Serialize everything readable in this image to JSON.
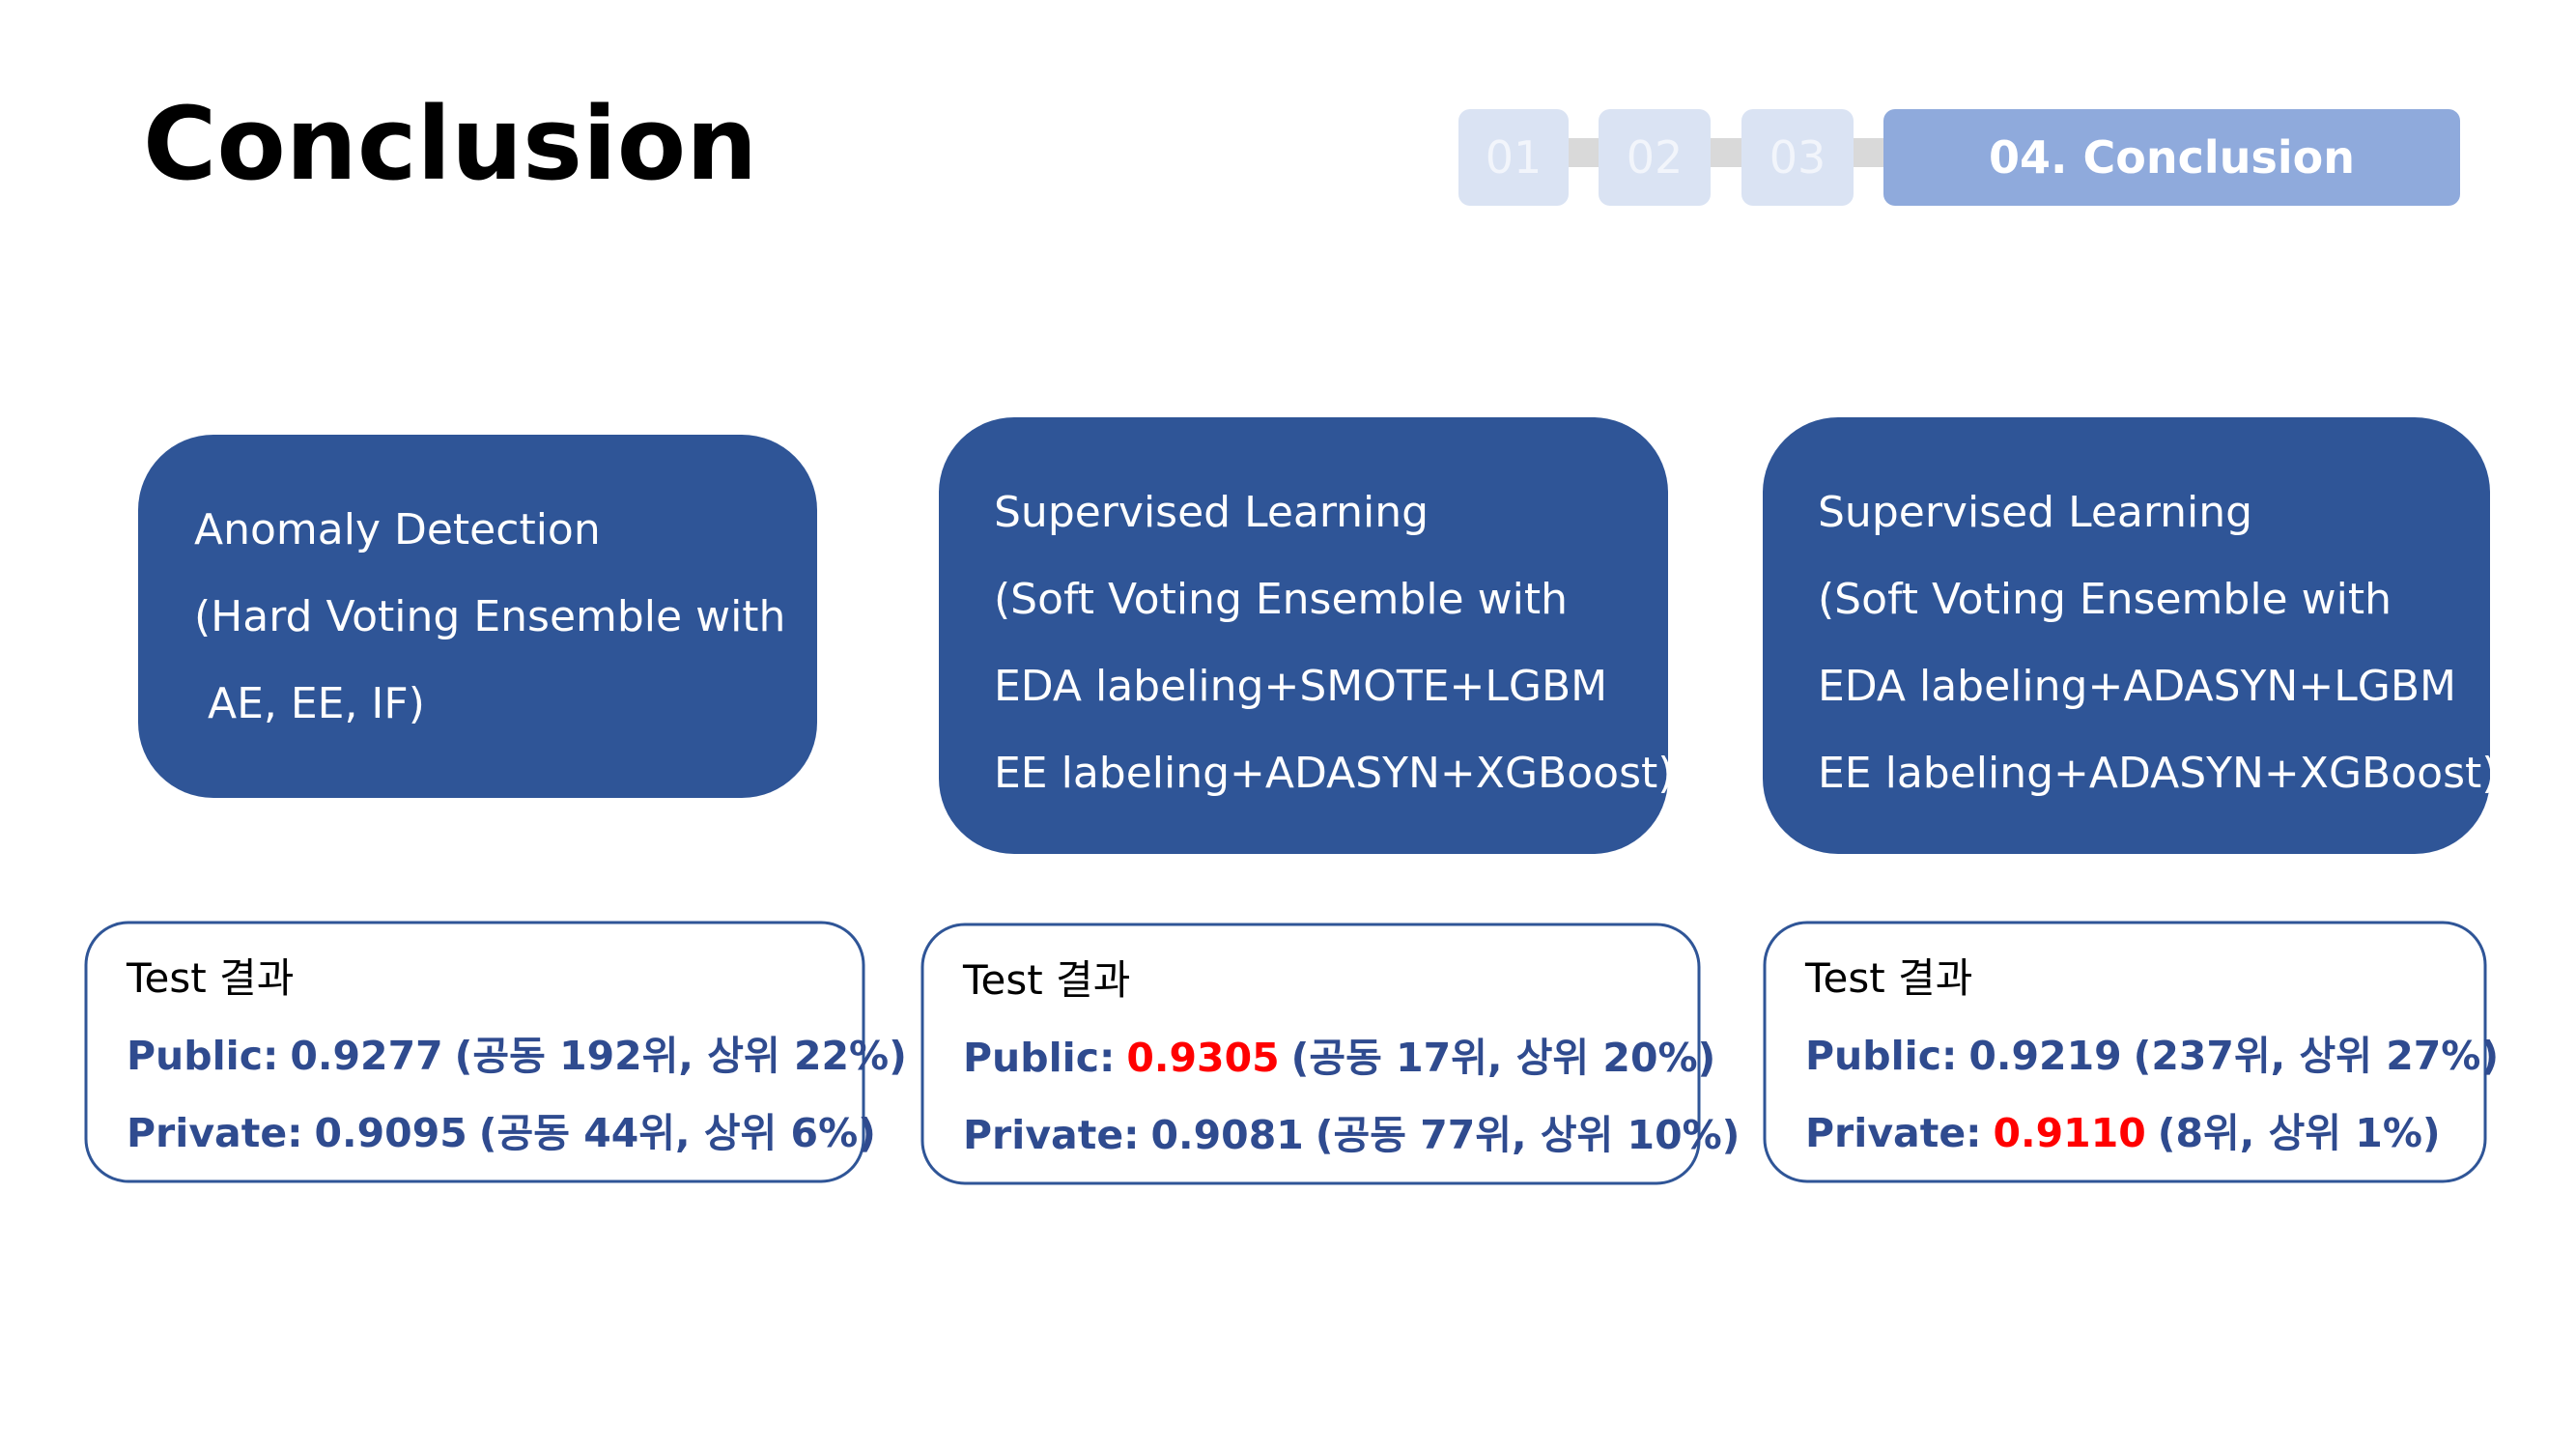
{
  "header": {
    "title": "Conclusion"
  },
  "nav": {
    "steps": [
      "01",
      "02",
      "03",
      "04. Conclusion"
    ],
    "active": 3
  },
  "cards": [
    {
      "lines": [
        "Anomaly Detection",
        "(Hard Voting Ensemble with",
        " AE, EE, IF)"
      ]
    },
    {
      "lines": [
        "Supervised Learning",
        "(Soft Voting Ensemble with",
        "EDA labeling+SMOTE+LGBM",
        "EE labeling+ADASYN+XGBoost)"
      ]
    },
    {
      "lines": [
        "Supervised Learning",
        "(Soft Voting Ensemble with",
        "EDA labeling+ADASYN+LGBM",
        "EE labeling+ADASYN+XGBoost)"
      ]
    }
  ],
  "results": [
    {
      "heading": "Test 결과",
      "rows": [
        {
          "label": "Public:",
          "value": "0.9277",
          "detail": "(공동 192위, 상위 22%)",
          "highlight": false
        },
        {
          "label": "Private:",
          "value": "0.9095",
          "detail": "(공동 44위, 상위 6%)",
          "highlight": false
        }
      ]
    },
    {
      "heading": "Test 결과",
      "rows": [
        {
          "label": "Public:",
          "value": "0.9305",
          "detail": "(공동 17위, 상위 20%)",
          "highlight": true
        },
        {
          "label": "Private:",
          "value": "0.9081",
          "detail": "(공동 77위, 상위 10%)",
          "highlight": false
        }
      ]
    },
    {
      "heading": "Test 결과",
      "rows": [
        {
          "label": "Public:",
          "value": "0.9219",
          "detail": "(237위, 상위 27%)",
          "highlight": false
        },
        {
          "label": "Private:",
          "value": "0.9110",
          "detail": "(8위, 상위 1%)",
          "highlight": true
        }
      ]
    }
  ]
}
